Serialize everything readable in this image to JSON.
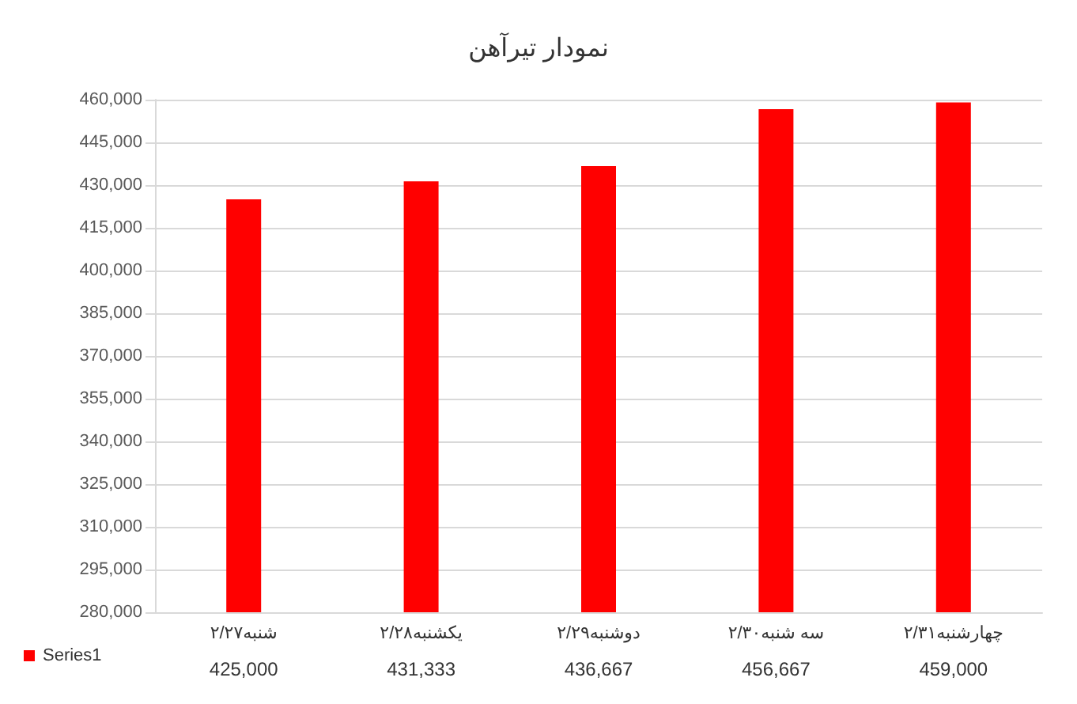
{
  "chart_data": {
    "type": "bar",
    "title": "نمودار تیرآهن",
    "categories": [
      "شنبه۲/۲۷",
      "یکشنبه۲/۲۸",
      "دوشنبه۲/۲۹",
      "سه شنبه۲/۳۰",
      "چهارشنبه۲/۳۱"
    ],
    "series": [
      {
        "name": "Series1",
        "color": "#ff0000",
        "values": [
          425000,
          431333,
          436667,
          456667,
          459000
        ],
        "value_labels": [
          "425,000",
          "431,333",
          "436,667",
          "456,667",
          "459,000"
        ]
      }
    ],
    "ylim": [
      280000,
      460000
    ],
    "yticks": [
      {
        "value": 280000,
        "label": "280,000"
      },
      {
        "value": 295000,
        "label": "295,000"
      },
      {
        "value": 310000,
        "label": "310,000"
      },
      {
        "value": 325000,
        "label": "325,000"
      },
      {
        "value": 340000,
        "label": "340,000"
      },
      {
        "value": 355000,
        "label": "355,000"
      },
      {
        "value": 370000,
        "label": "370,000"
      },
      {
        "value": 385000,
        "label": "385,000"
      },
      {
        "value": 400000,
        "label": "400,000"
      },
      {
        "value": 415000,
        "label": "415,000"
      },
      {
        "value": 430000,
        "label": "430,000"
      },
      {
        "value": 445000,
        "label": "445,000"
      },
      {
        "value": 460000,
        "label": "460,000"
      }
    ],
    "grid": "y",
    "legend": "bottom"
  }
}
